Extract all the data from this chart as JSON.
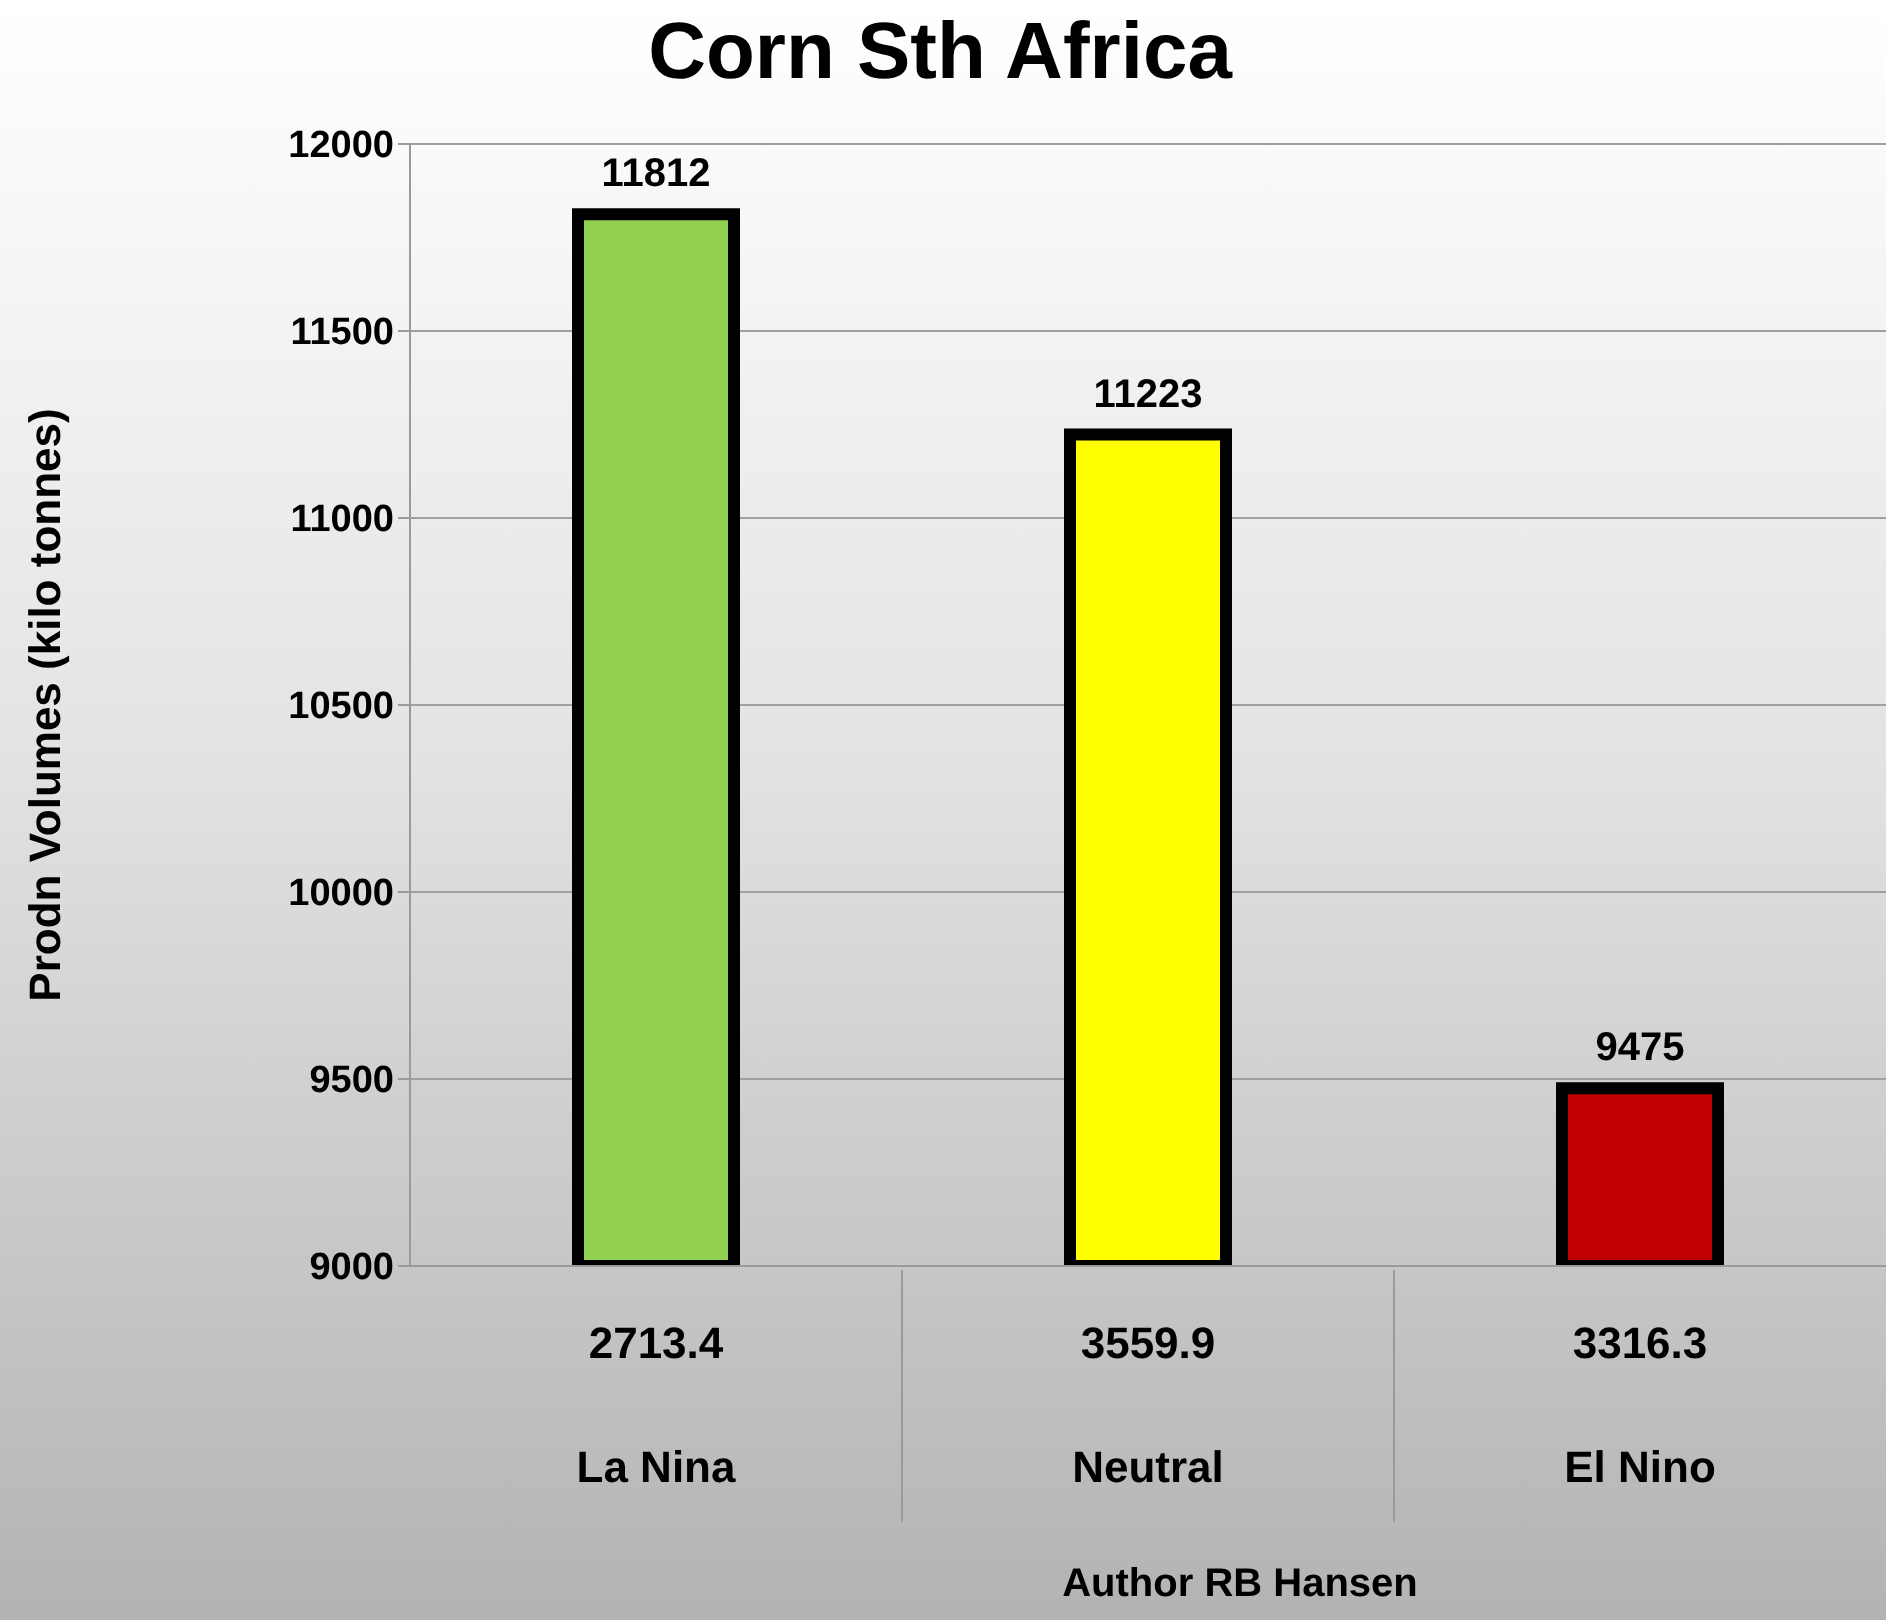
{
  "chart_data": {
    "type": "bar",
    "title": "Corn Sth Africa",
    "ylabel": "Prodn Volumes  (kilo tonnes)",
    "categories": [
      "2713.4\nLa Nina",
      "3559.9\nNeutral",
      "3316.3\nEl Nino"
    ],
    "values": [
      11812,
      11223,
      9475
    ],
    "colors": [
      "#92d050",
      "#ffff00",
      "#c00000"
    ],
    "ylim": [
      9000,
      12000
    ],
    "yticks": [
      9000,
      9500,
      10000,
      10500,
      11000,
      11500,
      12000
    ],
    "grid": "y",
    "data_labels": true,
    "annotations": [
      "Author RB Hansen"
    ]
  }
}
